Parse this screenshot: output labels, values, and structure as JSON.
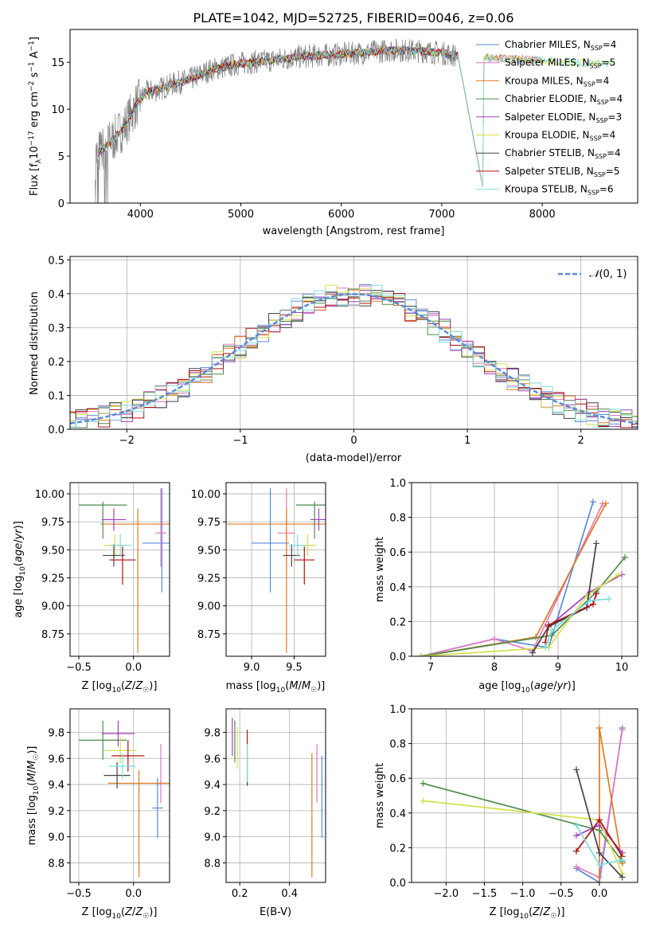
{
  "colors": {
    "chabrier_miles": "#5b8ad8",
    "salpeter_miles": "#e377c2",
    "kroupa_miles": "#e07b20",
    "chabrier_elodie": "#4f8a4f",
    "salpeter_elodie": "#a040c0",
    "kroupa_elodie": "#d4e04a",
    "chabrier_stelib": "#444444",
    "salpeter_stelib": "#b01010",
    "kroupa_stelib": "#7fdede",
    "data_gray": "#808080",
    "gaussian": "#5b8ad8"
  },
  "chart_data": [
    {
      "id": "spectrum",
      "type": "line",
      "title": "PLATE=1042, MJD=52725, FIBERID=0046, z=0.06",
      "xlabel": "wavelength [Angstrom, rest frame]",
      "ylabel": "Flux [f_λ10^-17 erg cm^-2 s^-1 A^-1]",
      "xlim": [
        3300,
        8950
      ],
      "ylim": [
        0,
        18.5
      ],
      "xticks": [
        "4000",
        "5000",
        "6000",
        "7000",
        "8000"
      ],
      "yticks": [
        "0",
        "5",
        "10",
        "15"
      ],
      "grid": false,
      "legend": "top-right",
      "legend_entries": [
        "Chabrier MILES, N_SSP=4",
        "Salpeter MILES, N_SSP=5",
        "Kroupa MILES, N_SSP=4",
        "Chabrier ELODIE, N_SSP=4",
        "Salpeter ELODIE, N_SSP=3",
        "Kroupa ELODIE, N_SSP=4",
        "Chabrier STELIB, N_SSP=4",
        "Salpeter STELIB, N_SSP=5",
        "Kroupa STELIB, N_SSP=6"
      ],
      "continuum_x": [
        3550,
        3650,
        3750,
        3850,
        3950,
        4050,
        4150,
        4300,
        4500,
        4700,
        5000,
        5300,
        5600,
        5900,
        6200,
        6500,
        6800,
        7000,
        7100,
        7200,
        7400,
        7600,
        7800,
        8000,
        8300,
        8600,
        8900
      ],
      "continuum_y": [
        5.0,
        6.0,
        7.0,
        8.3,
        10.3,
        11.8,
        12.0,
        12.6,
        13.2,
        14.2,
        14.9,
        15.2,
        15.6,
        15.8,
        16.0,
        16.3,
        16.2,
        16.0,
        15.8,
        15.7,
        15.5,
        15.4,
        15.3,
        15.2,
        15.0,
        14.8,
        14.8
      ]
    },
    {
      "id": "residuals",
      "type": "line",
      "xlabel": "(data-model)/error",
      "ylabel": "Normed distribution",
      "xlim": [
        -2.5,
        2.5
      ],
      "ylim": [
        0,
        0.51
      ],
      "xticks": [
        "−2",
        "−1",
        "0",
        "1",
        "2"
      ],
      "yticks": [
        "0.0",
        "0.1",
        "0.2",
        "0.3",
        "0.4",
        "0.5"
      ],
      "grid": true,
      "legend": "top-right",
      "legend_entries": [
        "𝒩(0, 1)"
      ],
      "bin_width": 0.1
    },
    {
      "id": "age_vs_Z",
      "type": "scatter",
      "xlabel": "Z [log10(Z/Z☉)]",
      "ylabel": "age [log10(age/yr)]",
      "xlim": [
        -0.58,
        0.33
      ],
      "ylim": [
        8.55,
        10.1
      ],
      "xticks": [
        "−0.5",
        "0.0"
      ],
      "yticks": [
        "8.75",
        "9.00",
        "9.25",
        "9.50",
        "9.75",
        "10.00"
      ],
      "grid": true,
      "points": [
        {
          "model": "chabrier_miles",
          "x": 0.26,
          "y": 9.56,
          "xerr": 0.18,
          "yerr": [
            0.44,
            0.49
          ]
        },
        {
          "model": "salpeter_miles",
          "x": 0.25,
          "y": 9.65,
          "xerr": 0.05,
          "yerr": [
            0.3,
            0.4
          ]
        },
        {
          "model": "kroupa_miles",
          "x": 0.04,
          "y": 9.73,
          "xerr": 0.34,
          "yerr": [
            1.15,
            0.14
          ]
        },
        {
          "model": "chabrier_elodie",
          "x": -0.28,
          "y": 9.9,
          "xerr": 0.22,
          "yerr": [
            0.3,
            0.03
          ]
        },
        {
          "model": "salpeter_elodie",
          "x": -0.18,
          "y": 9.77,
          "xerr": 0.11,
          "yerr": [
            0.1,
            0.1
          ]
        },
        {
          "model": "kroupa_elodie",
          "x": -0.17,
          "y": 9.54,
          "xerr": 0.1,
          "yerr": [
            0.1,
            0.1
          ]
        },
        {
          "model": "chabrier_stelib",
          "x": -0.18,
          "y": 9.45,
          "xerr": 0.1,
          "yerr": [
            0.1,
            0.1
          ]
        },
        {
          "model": "salpeter_stelib",
          "x": -0.1,
          "y": 9.41,
          "xerr": 0.12,
          "yerr": [
            0.22,
            0.12
          ]
        },
        {
          "model": "kroupa_stelib",
          "x": -0.12,
          "y": 9.54,
          "xerr": 0.1,
          "yerr": [
            0.1,
            0.1
          ]
        }
      ]
    },
    {
      "id": "age_vs_mass",
      "type": "scatter",
      "xlabel": "mass [log10(M/M☉)]",
      "ylabel": "",
      "xlim": [
        8.7,
        9.87
      ],
      "ylim": [
        8.55,
        10.1
      ],
      "xticks": [
        "9.0",
        "9.5"
      ],
      "yticks": [
        "8.75",
        "9.00",
        "9.25",
        "9.50",
        "9.75",
        "10.00"
      ],
      "grid": true,
      "points": [
        {
          "model": "chabrier_miles",
          "x": 9.22,
          "y": 9.56,
          "xerr": 0.22,
          "yerr": [
            0.44,
            0.49
          ]
        },
        {
          "model": "salpeter_miles",
          "x": 9.41,
          "y": 9.65,
          "xerr": 0.1,
          "yerr": [
            0.3,
            0.4
          ]
        },
        {
          "model": "kroupa_miles",
          "x": 9.41,
          "y": 9.73,
          "xerr": 0.7,
          "yerr": [
            1.15,
            0.14
          ]
        },
        {
          "model": "chabrier_elodie",
          "x": 9.74,
          "y": 9.9,
          "xerr": 0.22,
          "yerr": [
            0.3,
            0.03
          ]
        },
        {
          "model": "salpeter_elodie",
          "x": 9.79,
          "y": 9.77,
          "xerr": 0.1,
          "yerr": [
            0.1,
            0.1
          ]
        },
        {
          "model": "kroupa_elodie",
          "x": 9.66,
          "y": 9.54,
          "xerr": 0.1,
          "yerr": [
            0.1,
            0.1
          ]
        },
        {
          "model": "chabrier_stelib",
          "x": 9.47,
          "y": 9.45,
          "xerr": 0.1,
          "yerr": [
            0.1,
            0.1
          ]
        },
        {
          "model": "salpeter_stelib",
          "x": 9.62,
          "y": 9.41,
          "xerr": 0.12,
          "yerr": [
            0.22,
            0.12
          ]
        },
        {
          "model": "kroupa_stelib",
          "x": 9.54,
          "y": 9.54,
          "xerr": 0.1,
          "yerr": [
            0.1,
            0.1
          ]
        }
      ]
    },
    {
      "id": "weight_vs_age",
      "type": "line",
      "xlabel": "age [log10(age/yr)]",
      "ylabel": "mass weight",
      "xlim": [
        6.7,
        10.25
      ],
      "ylim": [
        0,
        1.0
      ],
      "xticks": [
        "7",
        "8",
        "9",
        "10"
      ],
      "yticks": [
        "0.0",
        "0.2",
        "0.4",
        "0.6",
        "0.8",
        "1.0"
      ],
      "grid": true,
      "series": [
        {
          "model": "chabrier_miles",
          "x": [
            6.85,
            8.0,
            8.85,
            9.55
          ],
          "y": [
            0.0,
            0.1,
            0.05,
            0.89
          ]
        },
        {
          "model": "salpeter_miles",
          "x": [
            6.85,
            8.0,
            8.6,
            9.7
          ],
          "y": [
            0.0,
            0.1,
            0.03,
            0.88
          ]
        },
        {
          "model": "kroupa_miles",
          "x": [
            6.85,
            8.65,
            9.75
          ],
          "y": [
            0.0,
            0.11,
            0.88
          ]
        },
        {
          "model": "chabrier_elodie",
          "x": [
            6.85,
            8.9,
            9.6,
            10.05
          ],
          "y": [
            0.0,
            0.12,
            0.37,
            0.57
          ]
        },
        {
          "model": "salpeter_elodie",
          "x": [
            8.85,
            9.5,
            10.0
          ],
          "y": [
            0.17,
            0.37,
            0.47
          ]
        },
        {
          "model": "kroupa_elodie",
          "x": [
            6.85,
            8.85,
            9.45,
            9.95
          ],
          "y": [
            0.0,
            0.05,
            0.35,
            0.47
          ]
        },
        {
          "model": "chabrier_stelib",
          "x": [
            8.6,
            8.85,
            9.45,
            9.6
          ],
          "y": [
            0.02,
            0.17,
            0.28,
            0.65
          ]
        },
        {
          "model": "salpeter_stelib",
          "x": [
            8.8,
            8.85,
            9.55,
            9.6
          ],
          "y": [
            0.08,
            0.18,
            0.3,
            0.36
          ]
        },
        {
          "model": "kroupa_stelib",
          "x": [
            8.8,
            8.9,
            9.5,
            9.8
          ],
          "y": [
            0.05,
            0.15,
            0.32,
            0.33
          ]
        }
      ]
    },
    {
      "id": "mass_vs_Z",
      "type": "scatter",
      "xlabel": "Z [log10(Z/Z☉)]",
      "ylabel": "mass [log10(M/M☉)]",
      "xlim": [
        -0.58,
        0.33
      ],
      "ylim": [
        8.65,
        9.98
      ],
      "xticks": [
        "−0.5",
        "0.0"
      ],
      "yticks": [
        "8.8",
        "9.0",
        "9.2",
        "9.4",
        "9.6",
        "9.8"
      ],
      "grid": true,
      "points": [
        {
          "model": "chabrier_miles",
          "x": 0.22,
          "y": 9.22,
          "xerr": 0.05,
          "yerr": [
            0.23,
            0.23
          ]
        },
        {
          "model": "salpeter_miles",
          "x": 0.25,
          "y": 9.41,
          "xerr": 0.05,
          "yerr": [
            0.15,
            0.3
          ]
        },
        {
          "model": "kroupa_miles",
          "x": 0.05,
          "y": 9.41,
          "xerr": 0.28,
          "yerr": [
            0.72,
            0.1
          ]
        },
        {
          "model": "chabrier_elodie",
          "x": -0.28,
          "y": 9.74,
          "xerr": 0.22,
          "yerr": [
            0.15,
            0.15
          ]
        },
        {
          "model": "salpeter_elodie",
          "x": -0.14,
          "y": 9.79,
          "xerr": 0.15,
          "yerr": [
            0.1,
            0.1
          ]
        },
        {
          "model": "kroupa_elodie",
          "x": -0.12,
          "y": 9.66,
          "xerr": 0.15,
          "yerr": [
            0.1,
            0.1
          ]
        },
        {
          "model": "chabrier_stelib",
          "x": -0.15,
          "y": 9.47,
          "xerr": 0.12,
          "yerr": [
            0.1,
            0.1
          ]
        },
        {
          "model": "salpeter_stelib",
          "x": -0.05,
          "y": 9.62,
          "xerr": 0.15,
          "yerr": [
            0.12,
            0.12
          ]
        },
        {
          "model": "kroupa_stelib",
          "x": -0.1,
          "y": 9.54,
          "xerr": 0.12,
          "yerr": [
            0.1,
            0.1
          ]
        }
      ]
    },
    {
      "id": "mass_vs_ebv",
      "type": "scatter",
      "xlabel": "E(B-V)",
      "ylabel": "",
      "xlim": [
        0.145,
        0.545
      ],
      "ylim": [
        8.65,
        9.98
      ],
      "xticks": [
        "0.2",
        "0.4"
      ],
      "yticks": [
        "8.8",
        "9.0",
        "9.2",
        "9.4",
        "9.6",
        "9.8"
      ],
      "grid": true,
      "points": [
        {
          "model": "chabrier_miles",
          "x": 0.53,
          "y": 9.22,
          "xerr": 0.0,
          "yerr": [
            0.23,
            0.4
          ]
        },
        {
          "model": "salpeter_miles",
          "x": 0.51,
          "y": 9.41,
          "xerr": 0.0,
          "yerr": [
            0.15,
            0.3
          ]
        },
        {
          "model": "kroupa_miles",
          "x": 0.49,
          "y": 9.41,
          "xerr": 0.0,
          "yerr": [
            0.72,
            0.23
          ]
        },
        {
          "model": "chabrier_elodie",
          "x": 0.18,
          "y": 9.74,
          "xerr": 0.0,
          "yerr": [
            0.17,
            0.15
          ]
        },
        {
          "model": "salpeter_elodie",
          "x": 0.17,
          "y": 9.79,
          "xerr": 0.0,
          "yerr": [
            0.17,
            0.12
          ]
        },
        {
          "model": "kroupa_elodie",
          "x": 0.19,
          "y": 9.66,
          "xerr": 0.0,
          "yerr": [
            0.14,
            0.18
          ]
        },
        {
          "model": "chabrier_stelib",
          "x": 0.23,
          "y": 9.47,
          "xerr": 0.0,
          "yerr": [
            0.08,
            0.1
          ]
        },
        {
          "model": "salpeter_stelib",
          "x": 0.23,
          "y": 9.62,
          "xerr": 0.0,
          "yerr": [
            0.05,
            0.2
          ]
        },
        {
          "model": "kroupa_stelib",
          "x": 0.23,
          "y": 9.54,
          "xerr": 0.0,
          "yerr": [
            0.12,
            0.17
          ]
        }
      ]
    },
    {
      "id": "weight_vs_Z",
      "type": "line",
      "xlabel": "Z [log10(Z/Z☉)]",
      "ylabel": "mass weight",
      "xlim": [
        -2.45,
        0.5
      ],
      "ylim": [
        0,
        1.0
      ],
      "xticks": [
        "−2.0",
        "−1.5",
        "−1.0",
        "−0.5",
        "0.0"
      ],
      "yticks": [
        "0.0",
        "0.2",
        "0.4",
        "0.6",
        "0.8",
        "1.0"
      ],
      "grid": true,
      "series": [
        {
          "model": "chabrier_miles",
          "x": [
            -0.3,
            0.0,
            0.3
          ],
          "y": [
            0.08,
            0.0,
            0.89
          ]
        },
        {
          "model": "salpeter_miles",
          "x": [
            -0.3,
            0.0,
            0.3
          ],
          "y": [
            0.09,
            0.03,
            0.88
          ]
        },
        {
          "model": "kroupa_miles",
          "x": [
            0.0,
            0.0,
            0.3
          ],
          "y": [
            0.0,
            0.89,
            0.11
          ]
        },
        {
          "model": "chabrier_elodie",
          "x": [
            -2.3,
            0.0,
            0.3
          ],
          "y": [
            0.57,
            0.3,
            0.12
          ]
        },
        {
          "model": "salpeter_elodie",
          "x": [
            -0.3,
            0.0,
            0.3
          ],
          "y": [
            0.27,
            0.33,
            0.17
          ]
        },
        {
          "model": "kroupa_elodie",
          "x": [
            -2.3,
            0.0,
            0.3
          ],
          "y": [
            0.47,
            0.36,
            0.05
          ]
        },
        {
          "model": "chabrier_stelib",
          "x": [
            -0.3,
            0.0,
            0.3
          ],
          "y": [
            0.65,
            0.17,
            0.03
          ]
        },
        {
          "model": "salpeter_stelib",
          "x": [
            -0.3,
            0.0,
            0.3
          ],
          "y": [
            0.18,
            0.36,
            0.15
          ]
        },
        {
          "model": "kroupa_stelib",
          "x": [
            -0.3,
            0.0,
            0.3
          ],
          "y": [
            0.33,
            0.1,
            0.13
          ]
        }
      ]
    }
  ]
}
